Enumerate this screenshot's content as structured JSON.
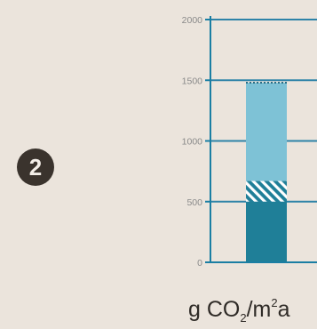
{
  "figure": {
    "number": "2"
  },
  "unit_label": {
    "prefix": "g CO",
    "subscript": "2",
    "middle": "/m",
    "superscript": "2",
    "suffix": "a"
  },
  "colors": {
    "axis": "#1a7ea3",
    "gridline": "#2e83a8",
    "bar_bottom": "#1f7f98",
    "bar_hatch": "#ffffff",
    "bar_top": "#7ec2d6",
    "background": "#ebe4dc"
  },
  "chart_data": {
    "type": "bar",
    "stacked": true,
    "categories": [
      ""
    ],
    "ylim": [
      0,
      2000
    ],
    "yticks": [
      "2000",
      "1500",
      "1000",
      "500",
      "0"
    ],
    "ytick_values": [
      2000,
      1500,
      1000,
      500,
      0
    ],
    "grid": true,
    "series": [
      {
        "values": [
          500
        ],
        "pattern": "solid",
        "color": "#1f7f98"
      },
      {
        "values": [
          170
        ],
        "pattern": "hatched",
        "color": "#1f7f98"
      },
      {
        "values": [
          810
        ],
        "pattern": "solid",
        "color": "#7ec2d6"
      }
    ]
  }
}
